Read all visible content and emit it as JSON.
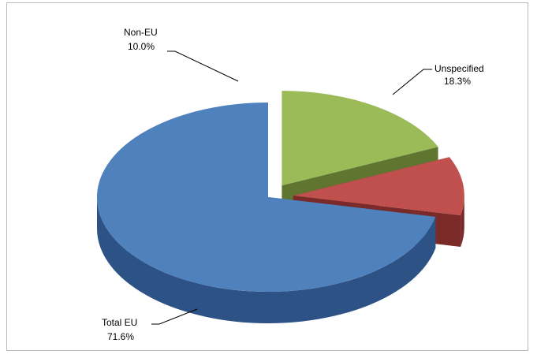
{
  "chart_data": {
    "type": "pie",
    "style": "3d-exploded",
    "title": "",
    "slices": [
      {
        "label": "Unspecified",
        "value": 18.3,
        "value_text": "18.3%",
        "color": "#9bbb59",
        "side_color": "#5f7530"
      },
      {
        "label": "Non-EU",
        "value": 10.0,
        "value_text": "10.0%",
        "color": "#c0504d",
        "side_color": "#7a2a28"
      },
      {
        "label": "Total EU",
        "value": 71.6,
        "value_text": "71.6%",
        "color": "#4f81bd",
        "side_color": "#2d5286"
      }
    ],
    "legend": "none",
    "data_labels": "outside-with-leader-lines"
  }
}
